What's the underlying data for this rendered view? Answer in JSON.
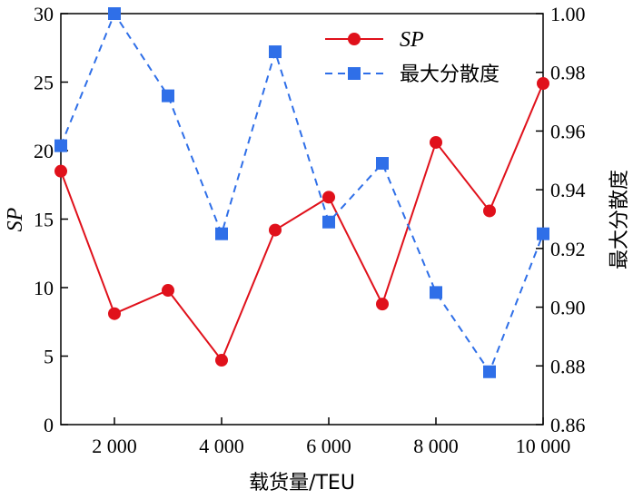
{
  "chart_data": {
    "type": "line",
    "x": [
      1000,
      2000,
      3000,
      4000,
      5000,
      6000,
      7000,
      8000,
      9000,
      10000
    ],
    "x_ticks": [
      2000,
      4000,
      6000,
      8000,
      10000
    ],
    "x_tick_labels": [
      "2 000",
      "4 000",
      "6 000",
      "8 000",
      "10 000"
    ],
    "xlim": [
      1000,
      10000
    ],
    "xlabel": "载货量/TEU",
    "ylabel_left": "SP",
    "ylabel_right": "最大分散度",
    "ylim_left": [
      0,
      30
    ],
    "ylim_right": [
      0.86,
      1.0
    ],
    "y_left_ticks": [
      0,
      5,
      10,
      15,
      20,
      25,
      30
    ],
    "y_left_tick_labels": [
      "0",
      "5",
      "10",
      "15",
      "20",
      "25",
      "30"
    ],
    "y_right_ticks": [
      0.86,
      0.88,
      0.9,
      0.92,
      0.94,
      0.96,
      0.98,
      1.0
    ],
    "y_right_tick_labels": [
      "0.86",
      "0.88",
      "0.90",
      "0.92",
      "0.94",
      "0.96",
      "0.98",
      "1.00"
    ],
    "series": [
      {
        "name": "SP",
        "axis": "left",
        "color": "#e0111b",
        "marker": "circle",
        "line_style": "solid",
        "values": [
          18.5,
          8.1,
          9.8,
          4.7,
          14.2,
          16.6,
          8.8,
          20.6,
          15.6,
          24.9
        ]
      },
      {
        "name": "最大分散度",
        "axis": "right",
        "color": "#2f6fe8",
        "marker": "square",
        "line_style": "dashed",
        "values": [
          0.955,
          1.0,
          0.972,
          0.925,
          0.987,
          0.929,
          0.949,
          0.905,
          0.878,
          0.925
        ]
      }
    ],
    "legend_position": "top-right"
  }
}
